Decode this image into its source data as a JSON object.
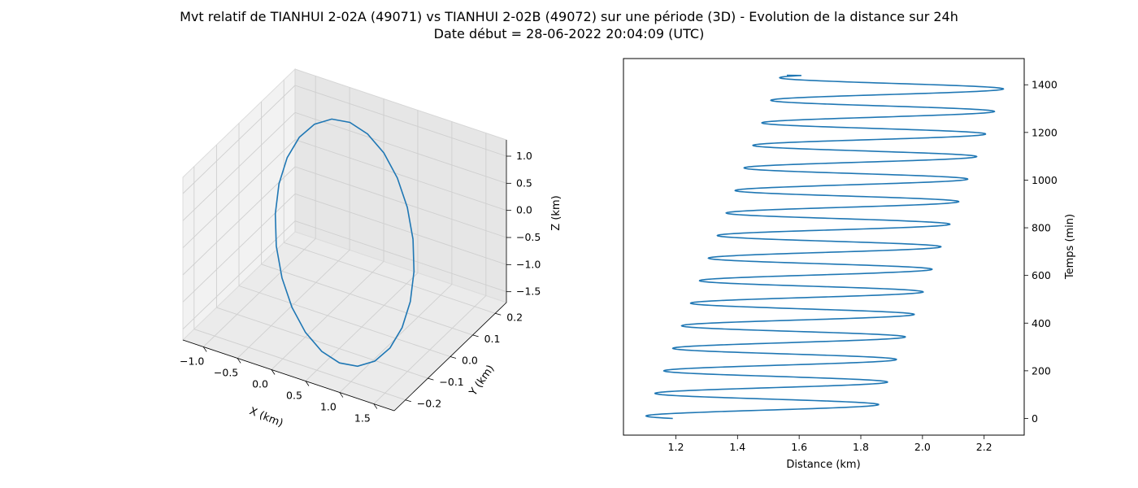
{
  "figure": {
    "title_line1": "Mvt relatif de TIANHUI 2-02A (49071) vs TIANHUI 2-02B (49072) sur une période (3D) - Evolution de la distance sur 24h",
    "title_line2": "Date début = 28-06-2022 20:04:09 (UTC)"
  },
  "colors": {
    "line": "#1f77b4",
    "pane_left": "#f2f2f2",
    "pane_right": "#e6e6e6",
    "pane_floor": "#ebebeb",
    "grid": "#cfcfcf"
  },
  "chart_data": [
    {
      "type": "line",
      "projection": "3d",
      "xlabel": "X (km)",
      "ylabel": "Y (km)",
      "zlabel": "Z (km)",
      "xlim": [
        -1.3,
        1.8
      ],
      "ylim": [
        -0.25,
        0.25
      ],
      "zlim": [
        -1.7,
        1.3
      ],
      "x_ticks": [
        -1.0,
        -0.5,
        0.0,
        0.5,
        1.0,
        1.5
      ],
      "x_tick_labels": [
        "−1.0",
        "−0.5",
        "0.0",
        "0.5",
        "1.0",
        "1.5"
      ],
      "y_ticks": [
        -0.2,
        -0.1,
        0.0,
        0.1,
        0.2
      ],
      "y_tick_labels": [
        "−0.2",
        "−0.1",
        "0.0",
        "0.1",
        "0.2"
      ],
      "z_ticks": [
        -1.5,
        -1.0,
        -0.5,
        0.0,
        0.5,
        1.0
      ],
      "z_tick_labels": [
        "−1.5",
        "−1.0",
        "−0.5",
        "0.0",
        "0.5",
        "1.0"
      ],
      "grid": true,
      "orbit": {
        "cx": 0.25,
        "cz": -0.25,
        "rx": 1.45,
        "rz": 1.42,
        "y_amplitude": 0.2,
        "points": 24
      }
    },
    {
      "type": "line",
      "xlabel": "Distance (km)",
      "ylabel": "Temps (min)",
      "y_axis_side": "right",
      "xlim": [
        1.03,
        2.33
      ],
      "ylim": [
        -70,
        1510
      ],
      "x_ticks": [
        1.2,
        1.4,
        1.6,
        1.8,
        2.0,
        2.2
      ],
      "x_tick_labels": [
        "1.2",
        "1.4",
        "1.6",
        "1.8",
        "2.0",
        "2.2"
      ],
      "y_ticks": [
        0,
        200,
        400,
        600,
        800,
        1000,
        1200,
        1400
      ],
      "y_tick_labels": [
        "0",
        "200",
        "400",
        "600",
        "800",
        "1000",
        "1200",
        "1400"
      ],
      "grid": false,
      "series": {
        "t_start": 0,
        "t_end": 1440,
        "period_min": 94.6,
        "center_start": 1.47,
        "center_end": 1.91,
        "amplitude": 0.37,
        "start_distance": 1.19,
        "end_distance": 1.56
      }
    }
  ]
}
